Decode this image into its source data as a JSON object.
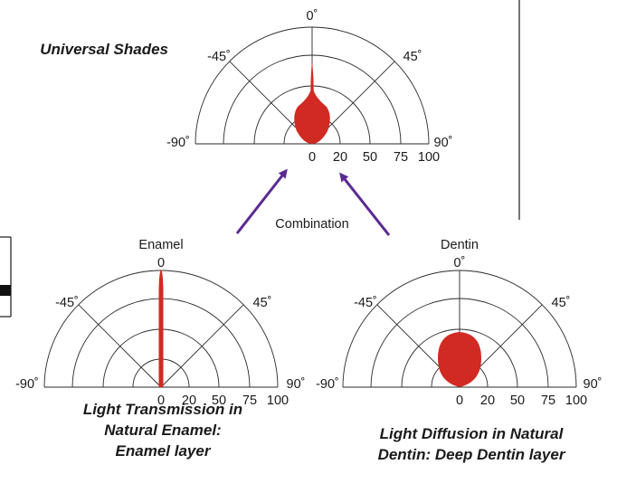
{
  "colors": {
    "lobe": "#d12a22",
    "arrow": "#5b2a91",
    "line": "#2a2a2a"
  },
  "captions": {
    "top": "Universal Shades",
    "left": [
      "Light Transmission in",
      "Natural Enamel:",
      "Enamel layer"
    ],
    "right": [
      "Light Diffusion in Natural",
      "Dentin: Deep Dentin layer"
    ]
  },
  "combination_label": "Combination",
  "charts": {
    "top": {
      "title": "",
      "angle_labels": {
        "a0": "0˚",
        "am45": "-45˚",
        "a45": "45˚",
        "am90": "-90˚",
        "a90": "90˚"
      },
      "ticks": [
        "0",
        "20",
        "50",
        "75",
        "100"
      ]
    },
    "enamel": {
      "title": "Enamel",
      "angle_labels": {
        "a0": "0",
        "am45": "-45˚",
        "a45": "45˚",
        "am90": "-90˚",
        "a90": "90˚"
      },
      "ticks": [
        "0",
        "20",
        "50",
        "75",
        "100"
      ]
    },
    "dentin": {
      "title": "Dentin",
      "angle_labels": {
        "a0": "0˚",
        "am45": "-45˚",
        "a45": "45˚",
        "am90": "-90˚",
        "a90": "90˚"
      },
      "ticks": [
        "0",
        "20",
        "50",
        "75",
        "100"
      ]
    }
  }
}
